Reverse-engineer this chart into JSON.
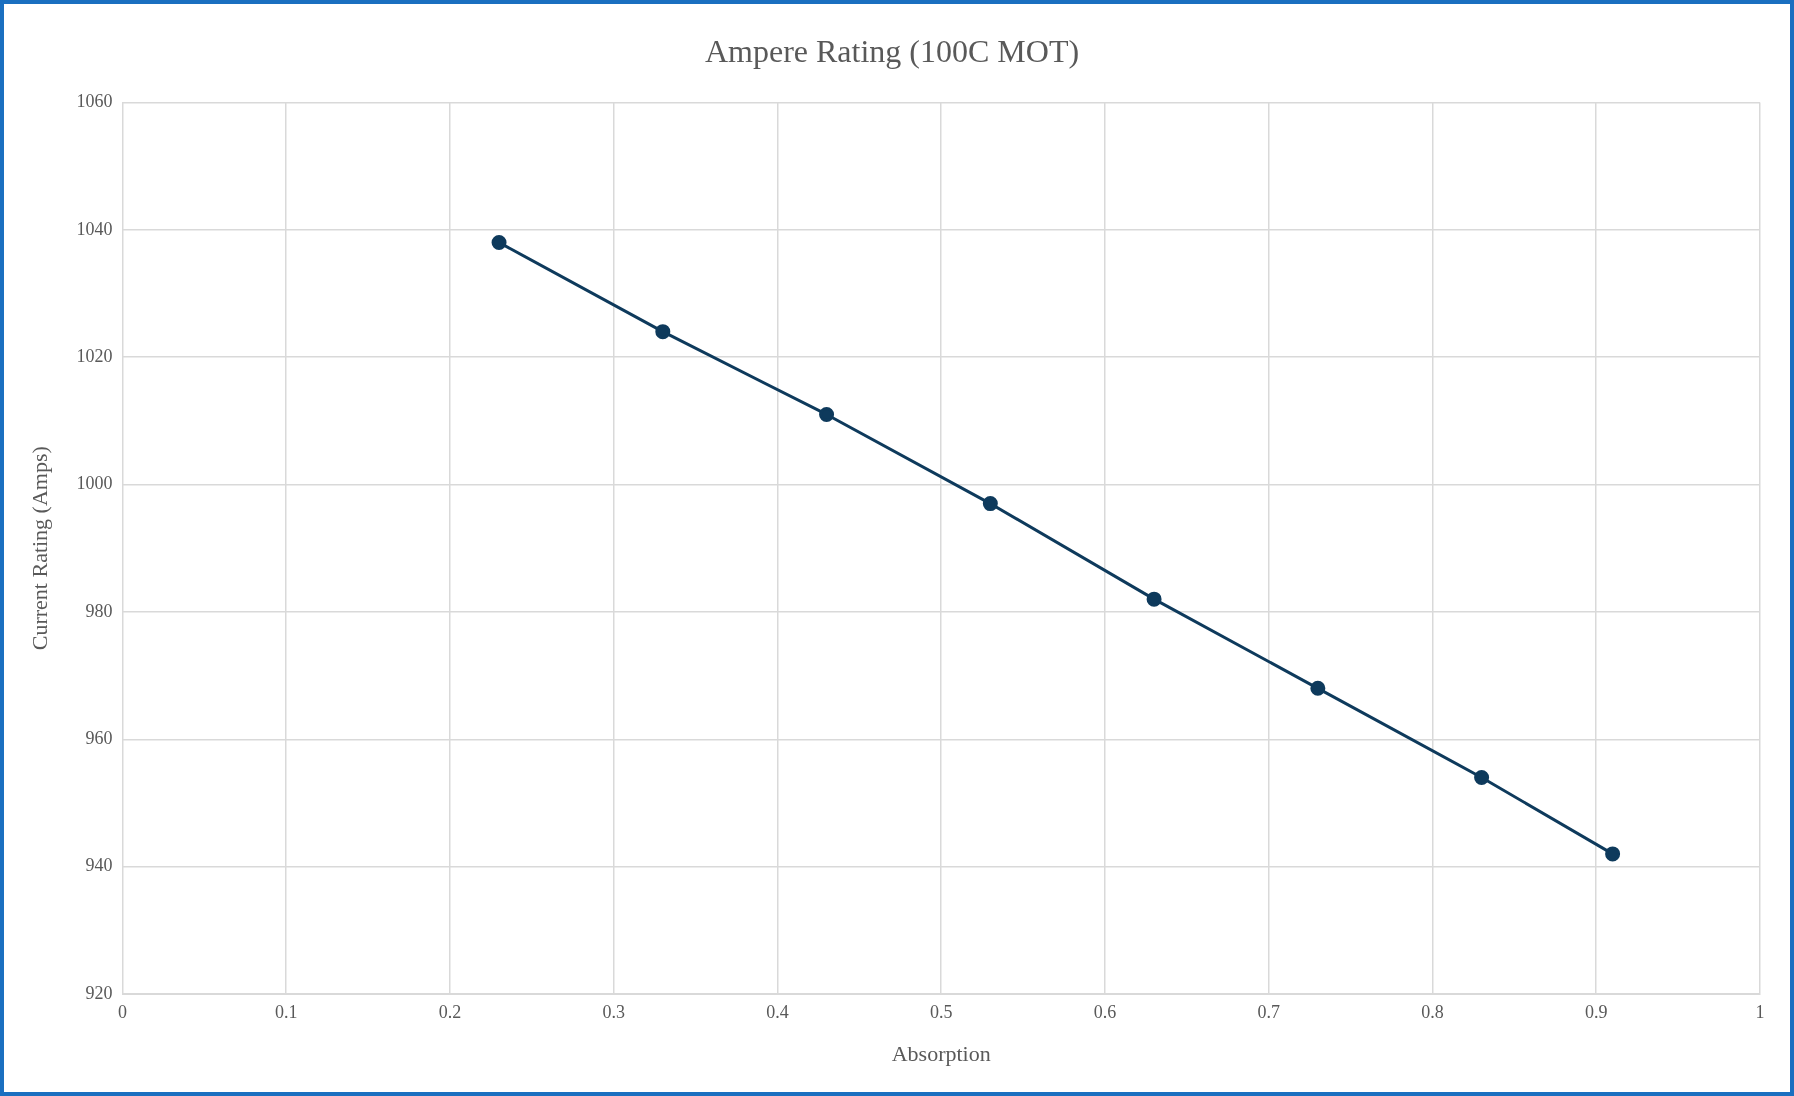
{
  "chart_data": {
    "type": "line",
    "title": "Ampere Rating (100C MOT)",
    "xlabel": "Absorption",
    "ylabel": "Current Rating (Amps)",
    "x": [
      0.23,
      0.33,
      0.43,
      0.53,
      0.63,
      0.73,
      0.83,
      0.91
    ],
    "series": [
      {
        "color": "#0e3a5c",
        "values": [
          1038,
          1024,
          1011,
          997,
          982,
          968,
          954,
          942
        ]
      }
    ],
    "xlim": [
      0,
      1
    ],
    "xticks": [
      0,
      0.1,
      0.2,
      0.3,
      0.4,
      0.5,
      0.6,
      0.7,
      0.8,
      0.9,
      1
    ],
    "ylim": [
      920,
      1060
    ],
    "yticks": [
      920,
      940,
      960,
      980,
      1000,
      1020,
      1040,
      1060
    ],
    "grid": true,
    "legend": false,
    "marker": "circle",
    "line_style": "solid"
  }
}
